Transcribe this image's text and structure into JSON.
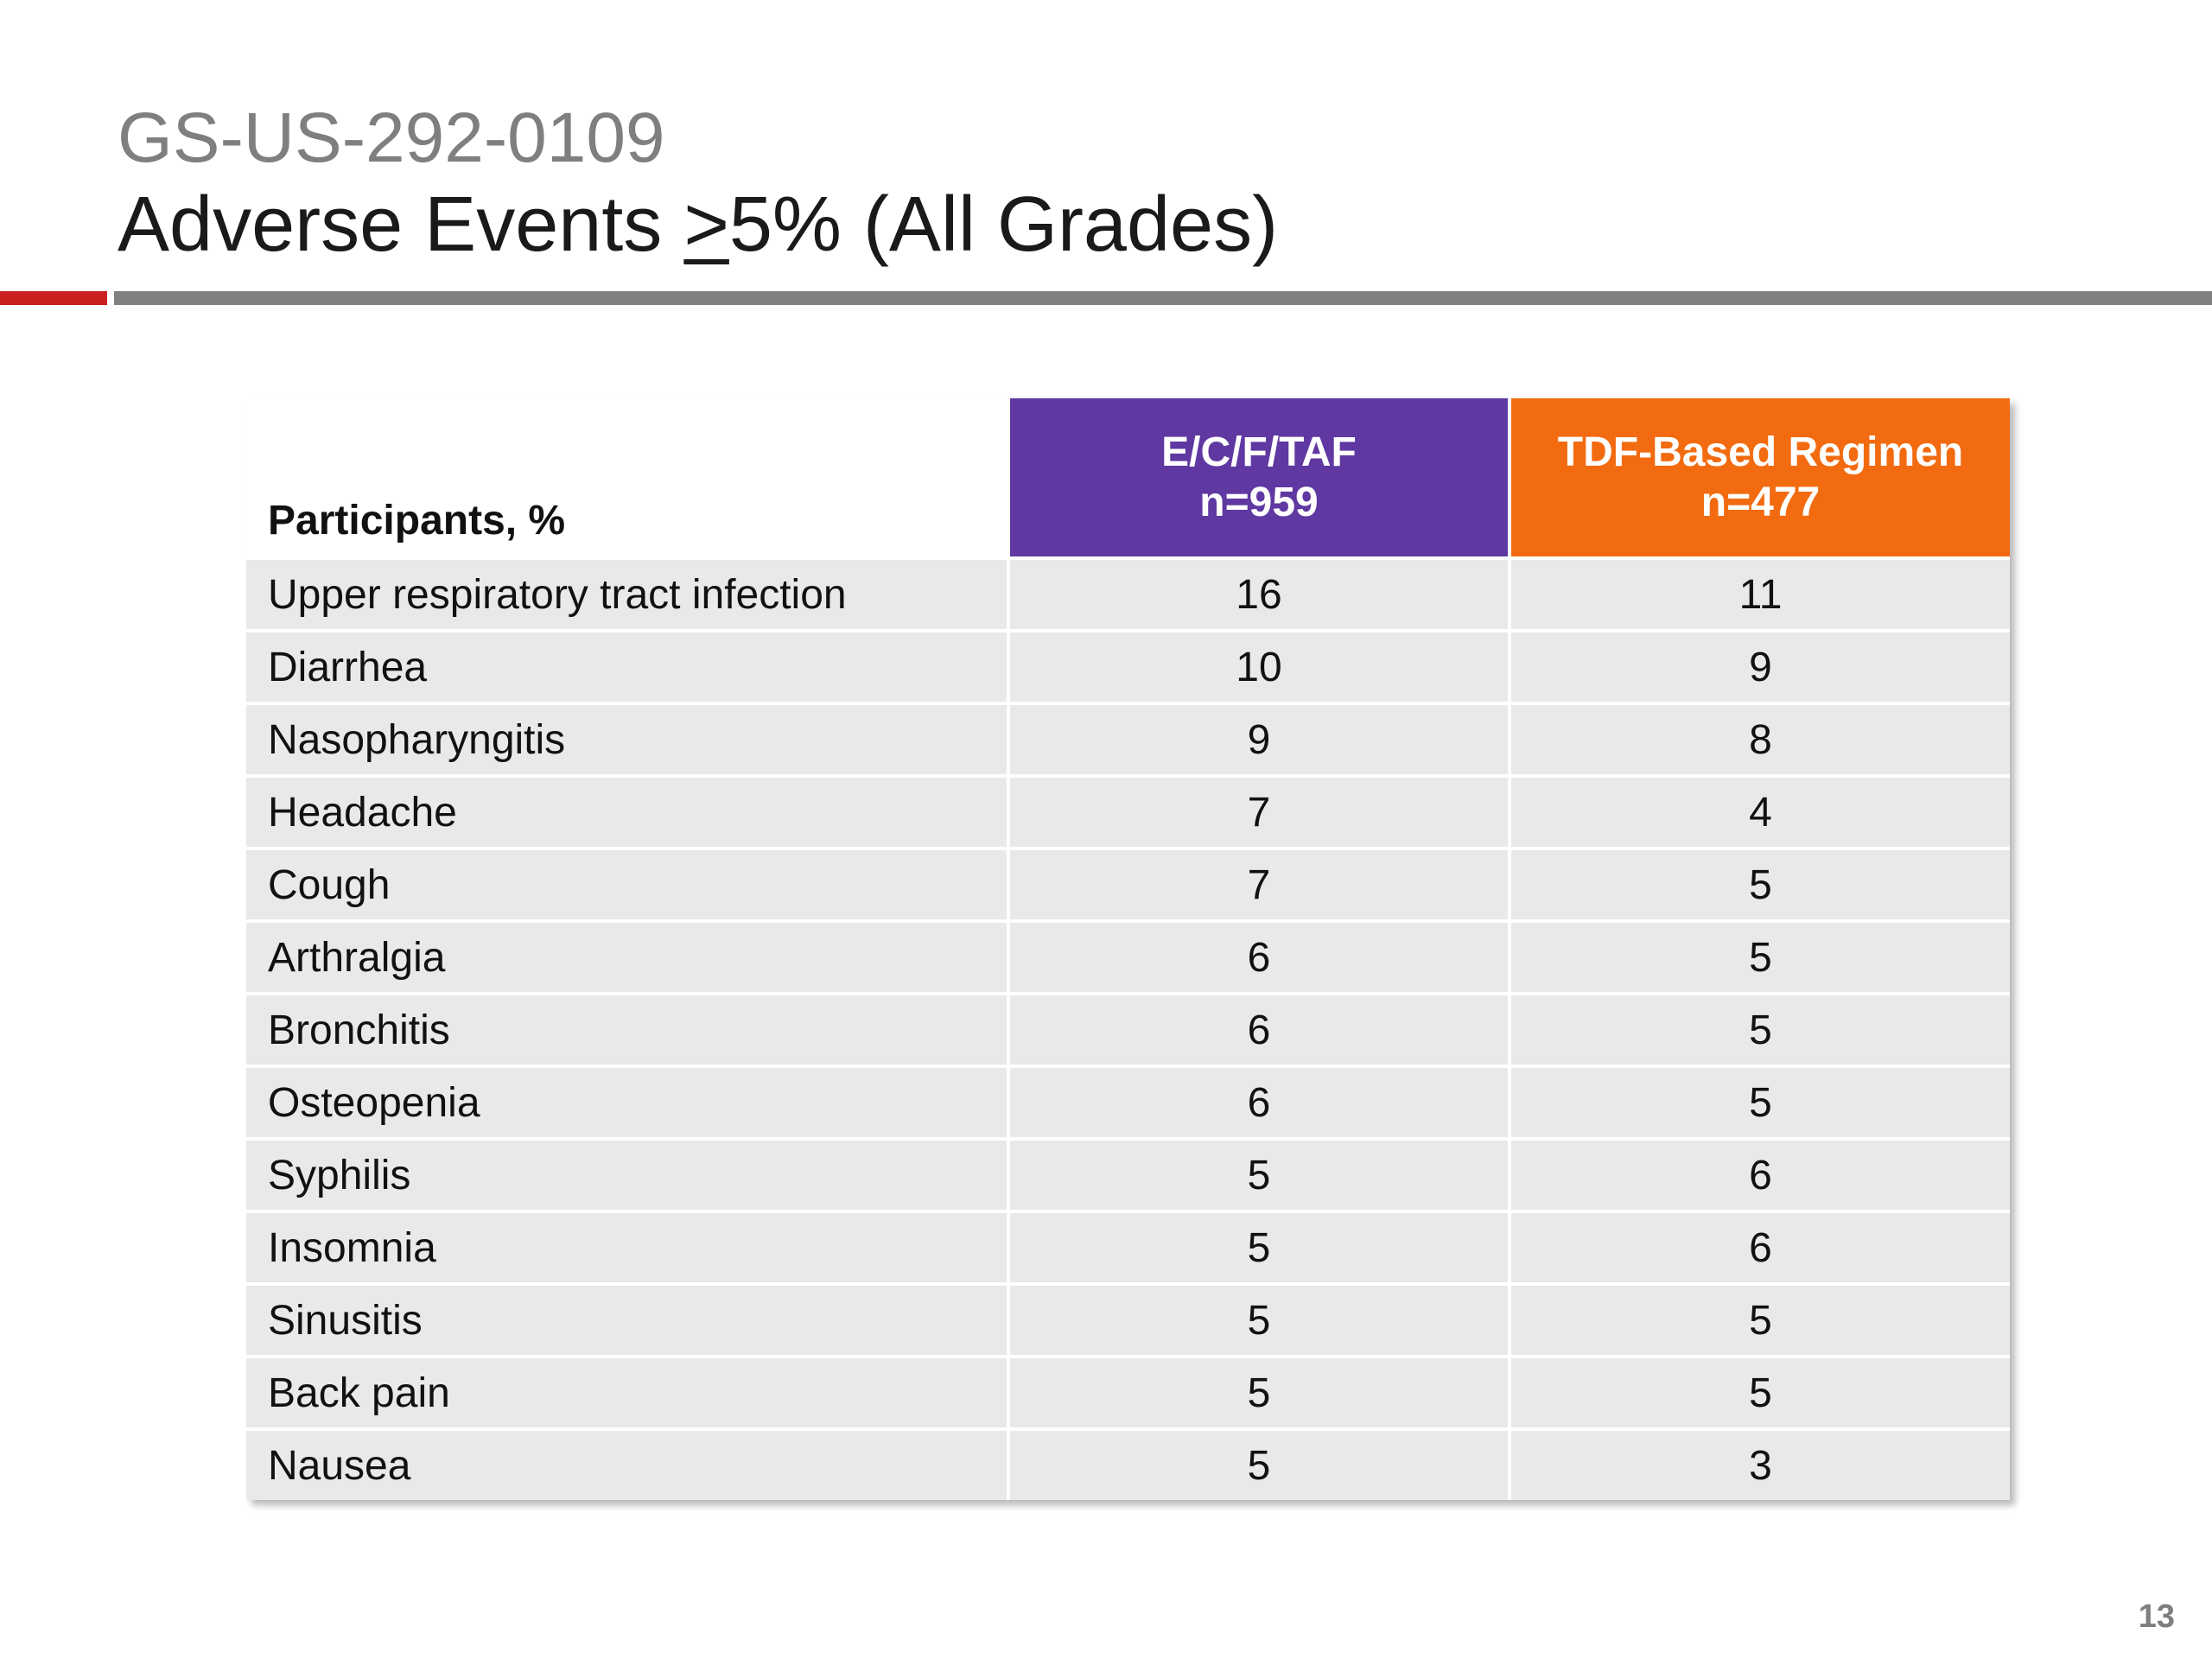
{
  "slide": {
    "study_id": "GS-US-292-0109",
    "title_prefix": "Adverse Events ",
    "title_geq": ">",
    "title_suffix": "5% (All Grades)",
    "page_number": "13",
    "colors": {
      "accent_red": "#cc1f1f",
      "rule_gray": "#808080",
      "header_purple": "#5f38a2",
      "header_orange": "#f26b10",
      "row_gray": "#e9e9e9"
    }
  },
  "table": {
    "row_header": "Participants, %",
    "columns": [
      {
        "name": "E/C/F/TAF",
        "n": "n=959"
      },
      {
        "name": "TDF-Based Regimen",
        "n": "n=477"
      }
    ],
    "rows": [
      {
        "event": "Upper respiratory tract infection",
        "a": "16",
        "b": "11"
      },
      {
        "event": "Diarrhea",
        "a": "10",
        "b": "9"
      },
      {
        "event": "Nasopharyngitis",
        "a": "9",
        "b": "8"
      },
      {
        "event": "Headache",
        "a": "7",
        "b": "4"
      },
      {
        "event": "Cough",
        "a": "7",
        "b": "5"
      },
      {
        "event": "Arthralgia",
        "a": "6",
        "b": "5"
      },
      {
        "event": "Bronchitis",
        "a": "6",
        "b": "5"
      },
      {
        "event": "Osteopenia",
        "a": "6",
        "b": "5"
      },
      {
        "event": "Syphilis",
        "a": "5",
        "b": "6"
      },
      {
        "event": "Insomnia",
        "a": "5",
        "b": "6"
      },
      {
        "event": "Sinusitis",
        "a": "5",
        "b": "5"
      },
      {
        "event": "Back pain",
        "a": "5",
        "b": "5"
      },
      {
        "event": "Nausea",
        "a": "5",
        "b": "3"
      }
    ]
  }
}
